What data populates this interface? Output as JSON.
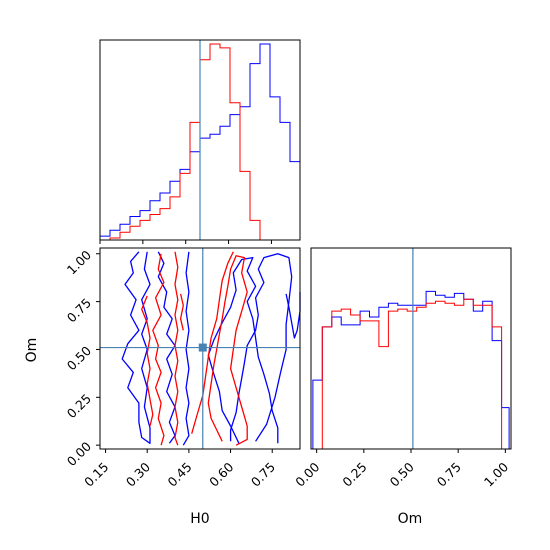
{
  "chart_data": {
    "type": "corner",
    "parameters": [
      "H0",
      "Om"
    ],
    "truth": {
      "H0": 0.5,
      "Om": 0.51
    },
    "colors": {
      "series1": "#0000ff",
      "series2": "#ff0000",
      "truth": "#4682b4"
    },
    "panels": [
      {
        "id": "hist-H0",
        "type": "step-histogram",
        "xlim": [
          0.15,
          0.85
        ],
        "bin_edges": [
          0.15,
          0.185,
          0.22,
          0.255,
          0.29,
          0.325,
          0.36,
          0.395,
          0.43,
          0.465,
          0.5,
          0.535,
          0.57,
          0.605,
          0.64,
          0.675,
          0.71,
          0.745,
          0.78,
          0.815,
          0.85
        ],
        "series": [
          {
            "color_key": "series1",
            "counts": [
              0.02,
              0.05,
              0.08,
              0.12,
              0.15,
              0.2,
              0.24,
              0.3,
              0.36,
              0.45,
              0.52,
              0.54,
              0.58,
              0.64,
              0.68,
              0.9,
              1.0,
              0.73,
              0.6,
              0.4
            ]
          },
          {
            "color_key": "series2",
            "counts": [
              0.0,
              0.01,
              0.04,
              0.07,
              0.1,
              0.13,
              0.16,
              0.22,
              0.34,
              0.6,
              0.92,
              1.0,
              0.98,
              0.7,
              0.35,
              0.1,
              0.0,
              0.0,
              0.0,
              0.0
            ]
          }
        ]
      },
      {
        "id": "hist-Om",
        "type": "step-histogram",
        "xlim": [
          -0.03,
          1.03
        ],
        "xlabel": "Om",
        "xticks": [
          "0.00",
          "0.25",
          "0.50",
          "0.75",
          "1.00"
        ],
        "xtick_values": [
          0,
          0.25,
          0.5,
          0.75,
          1.0
        ],
        "bin_edges": [
          -0.02,
          0.03,
          0.08,
          0.13,
          0.18,
          0.23,
          0.28,
          0.33,
          0.38,
          0.43,
          0.48,
          0.53,
          0.58,
          0.63,
          0.68,
          0.73,
          0.78,
          0.83,
          0.88,
          0.93,
          0.98,
          1.02
        ],
        "series": [
          {
            "color_key": "series1",
            "counts": [
              0.35,
              0.62,
              0.67,
              0.63,
              0.63,
              0.7,
              0.67,
              0.72,
              0.74,
              0.73,
              0.73,
              0.73,
              0.8,
              0.78,
              0.77,
              0.79,
              0.76,
              0.7,
              0.75,
              0.55,
              0.21
            ]
          },
          {
            "color_key": "series2",
            "counts": [
              0.0,
              0.62,
              0.7,
              0.71,
              0.68,
              0.65,
              0.65,
              0.52,
              0.7,
              0.71,
              0.7,
              0.72,
              0.74,
              0.75,
              0.74,
              0.73,
              0.76,
              0.73,
              0.73,
              0.62,
              0.0
            ]
          }
        ]
      },
      {
        "id": "contour-H0-Om",
        "type": "contour",
        "xlim": [
          0.13,
          0.85
        ],
        "ylim": [
          -0.02,
          1.03
        ],
        "xlabel": "H0",
        "ylabel": "Om",
        "xticks": [
          "0.15",
          "0.30",
          "0.45",
          "0.60",
          "0.75"
        ],
        "xtick_values": [
          0.15,
          0.3,
          0.45,
          0.6,
          0.75
        ],
        "yticks": [
          "0.00",
          "0.25",
          "0.50",
          "0.75",
          "1.00"
        ],
        "ytick_values": [
          0,
          0.25,
          0.5,
          0.75,
          1.0
        ],
        "contours": [
          {
            "color_key": "series1",
            "points": [
              [
                0.27,
                1.01
              ],
              [
                0.24,
                0.96
              ],
              [
                0.25,
                0.9
              ],
              [
                0.22,
                0.84
              ],
              [
                0.26,
                0.76
              ],
              [
                0.24,
                0.68
              ],
              [
                0.27,
                0.6
              ],
              [
                0.23,
                0.53
              ],
              [
                0.21,
                0.45
              ],
              [
                0.25,
                0.38
              ],
              [
                0.23,
                0.3
              ],
              [
                0.27,
                0.22
              ],
              [
                0.27,
                0.12
              ],
              [
                0.28,
                0.04
              ],
              [
                0.31,
                0.01
              ],
              [
                0.31,
                0.09
              ],
              [
                0.29,
                0.2
              ],
              [
                0.3,
                0.3
              ],
              [
                0.28,
                0.4
              ],
              [
                0.3,
                0.5
              ],
              [
                0.28,
                0.58
              ],
              [
                0.3,
                0.66
              ],
              [
                0.28,
                0.76
              ],
              [
                0.31,
                0.84
              ],
              [
                0.29,
                0.92
              ],
              [
                0.3,
                1.01
              ]
            ]
          },
          {
            "color_key": "series1",
            "points": [
              [
                0.34,
                1.01
              ],
              [
                0.36,
                0.95
              ],
              [
                0.34,
                0.88
              ],
              [
                0.37,
                0.8
              ],
              [
                0.36,
                0.72
              ],
              [
                0.39,
                0.66
              ],
              [
                0.37,
                0.58
              ],
              [
                0.4,
                0.52
              ],
              [
                0.37,
                0.45
              ],
              [
                0.39,
                0.37
              ],
              [
                0.37,
                0.28
              ],
              [
                0.4,
                0.2
              ],
              [
                0.38,
                0.12
              ],
              [
                0.4,
                0.05
              ],
              [
                0.38,
                0.01
              ]
            ]
          },
          {
            "color_key": "series1",
            "points": [
              [
                0.43,
                0.0
              ],
              [
                0.45,
                0.05
              ],
              [
                0.44,
                0.14
              ],
              [
                0.45,
                0.22
              ],
              [
                0.44,
                0.3
              ],
              [
                0.45,
                0.4
              ],
              [
                0.44,
                0.5
              ],
              [
                0.45,
                0.6
              ],
              [
                0.44,
                0.7
              ],
              [
                0.45,
                0.8
              ],
              [
                0.44,
                0.9
              ],
              [
                0.45,
                1.01
              ]
            ]
          },
          {
            "color_key": "series1",
            "points": [
              [
                0.63,
                0.01
              ],
              [
                0.6,
                0.1
              ],
              [
                0.57,
                0.18
              ],
              [
                0.56,
                0.28
              ],
              [
                0.54,
                0.37
              ],
              [
                0.52,
                0.47
              ],
              [
                0.54,
                0.55
              ],
              [
                0.57,
                0.64
              ],
              [
                0.6,
                0.72
              ],
              [
                0.62,
                0.81
              ],
              [
                0.61,
                0.9
              ],
              [
                0.64,
                0.97
              ],
              [
                0.68,
                0.98
              ],
              [
                0.66,
                0.91
              ],
              [
                0.69,
                0.83
              ],
              [
                0.66,
                0.75
              ],
              [
                0.68,
                0.66
              ],
              [
                0.69,
                0.56
              ],
              [
                0.7,
                0.46
              ],
              [
                0.72,
                0.37
              ],
              [
                0.74,
                0.27
              ],
              [
                0.75,
                0.18
              ],
              [
                0.77,
                0.09
              ],
              [
                0.77,
                0.01
              ]
            ]
          },
          {
            "color_key": "series1",
            "points": [
              [
                0.69,
                0.02
              ],
              [
                0.73,
                0.11
              ],
              [
                0.76,
                0.25
              ],
              [
                0.78,
                0.38
              ],
              [
                0.8,
                0.5
              ],
              [
                0.8,
                0.63
              ],
              [
                0.81,
                0.75
              ],
              [
                0.82,
                0.88
              ],
              [
                0.81,
                0.98
              ],
              [
                0.77,
                1.0
              ],
              [
                0.72,
                0.98
              ],
              [
                0.7,
                0.92
              ],
              [
                0.72,
                0.85
              ],
              [
                0.69,
                0.77
              ],
              [
                0.7,
                0.68
              ],
              [
                0.69,
                0.6
              ],
              [
                0.66,
                0.52
              ],
              [
                0.65,
                0.43
              ],
              [
                0.64,
                0.35
              ],
              [
                0.63,
                0.27
              ],
              [
                0.62,
                0.17
              ],
              [
                0.6,
                0.08
              ],
              [
                0.6,
                0.02
              ]
            ]
          },
          {
            "color_key": "series1",
            "points": [
              [
                0.8,
                0.79
              ],
              [
                0.81,
                0.72
              ],
              [
                0.82,
                0.64
              ],
              [
                0.83,
                0.56
              ],
              [
                0.84,
                0.6
              ],
              [
                0.85,
                0.7
              ],
              [
                0.85,
                0.8
              ]
            ]
          },
          {
            "color_key": "series2",
            "points": [
              [
                0.4,
                1.01
              ],
              [
                0.41,
                0.93
              ],
              [
                0.4,
                0.84
              ],
              [
                0.41,
                0.76
              ],
              [
                0.4,
                0.68
              ],
              [
                0.41,
                0.6
              ],
              [
                0.4,
                0.52
              ],
              [
                0.41,
                0.44
              ],
              [
                0.4,
                0.36
              ],
              [
                0.41,
                0.28
              ],
              [
                0.4,
                0.2
              ],
              [
                0.41,
                0.12
              ],
              [
                0.4,
                0.04
              ],
              [
                0.41,
                0.0
              ]
            ]
          },
          {
            "color_key": "series2",
            "points": [
              [
                0.35,
                1.0
              ],
              [
                0.34,
                0.92
              ],
              [
                0.36,
                0.85
              ],
              [
                0.33,
                0.77
              ],
              [
                0.35,
                0.68
              ],
              [
                0.32,
                0.6
              ],
              [
                0.34,
                0.52
              ],
              [
                0.33,
                0.45
              ],
              [
                0.35,
                0.38
              ],
              [
                0.33,
                0.3
              ],
              [
                0.35,
                0.22
              ],
              [
                0.34,
                0.14
              ],
              [
                0.36,
                0.05
              ],
              [
                0.35,
                0.0
              ]
            ]
          },
          {
            "color_key": "series2",
            "points": [
              [
                0.3,
                0.78
              ],
              [
                0.28,
                0.71
              ],
              [
                0.3,
                0.64
              ],
              [
                0.31,
                0.56
              ],
              [
                0.3,
                0.48
              ],
              [
                0.31,
                0.4
              ],
              [
                0.3,
                0.32
              ],
              [
                0.31,
                0.24
              ],
              [
                0.32,
                0.16
              ],
              [
                0.31,
                0.1
              ]
            ]
          },
          {
            "color_key": "series2",
            "points": [
              [
                0.42,
                0.79
              ],
              [
                0.43,
                0.73
              ],
              [
                0.42,
                0.66
              ],
              [
                0.43,
                0.6
              ]
            ]
          },
          {
            "color_key": "series2",
            "points": [
              [
                0.57,
                0.02
              ],
              [
                0.55,
                0.08
              ],
              [
                0.53,
                0.14
              ],
              [
                0.52,
                0.22
              ],
              [
                0.53,
                0.32
              ],
              [
                0.54,
                0.42
              ],
              [
                0.55,
                0.5
              ],
              [
                0.56,
                0.58
              ],
              [
                0.57,
                0.66
              ],
              [
                0.58,
                0.75
              ],
              [
                0.59,
                0.83
              ],
              [
                0.6,
                0.92
              ],
              [
                0.62,
                0.99
              ],
              [
                0.65,
                0.98
              ],
              [
                0.64,
                0.9
              ],
              [
                0.66,
                0.8
              ],
              [
                0.64,
                0.7
              ],
              [
                0.62,
                0.6
              ],
              [
                0.61,
                0.5
              ],
              [
                0.6,
                0.4
              ],
              [
                0.62,
                0.3
              ],
              [
                0.64,
                0.2
              ],
              [
                0.66,
                0.1
              ],
              [
                0.66,
                0.03
              ],
              [
                0.62,
                0.0
              ]
            ]
          },
          {
            "color_key": "series2",
            "points": [
              [
                0.46,
                0.06
              ],
              [
                0.48,
                0.16
              ],
              [
                0.5,
                0.26
              ],
              [
                0.51,
                0.36
              ],
              [
                0.52,
                0.46
              ],
              [
                0.53,
                0.56
              ],
              [
                0.55,
                0.66
              ],
              [
                0.56,
                0.76
              ],
              [
                0.57,
                0.86
              ],
              [
                0.59,
                0.95
              ],
              [
                0.61,
                1.01
              ]
            ]
          }
        ]
      }
    ]
  }
}
